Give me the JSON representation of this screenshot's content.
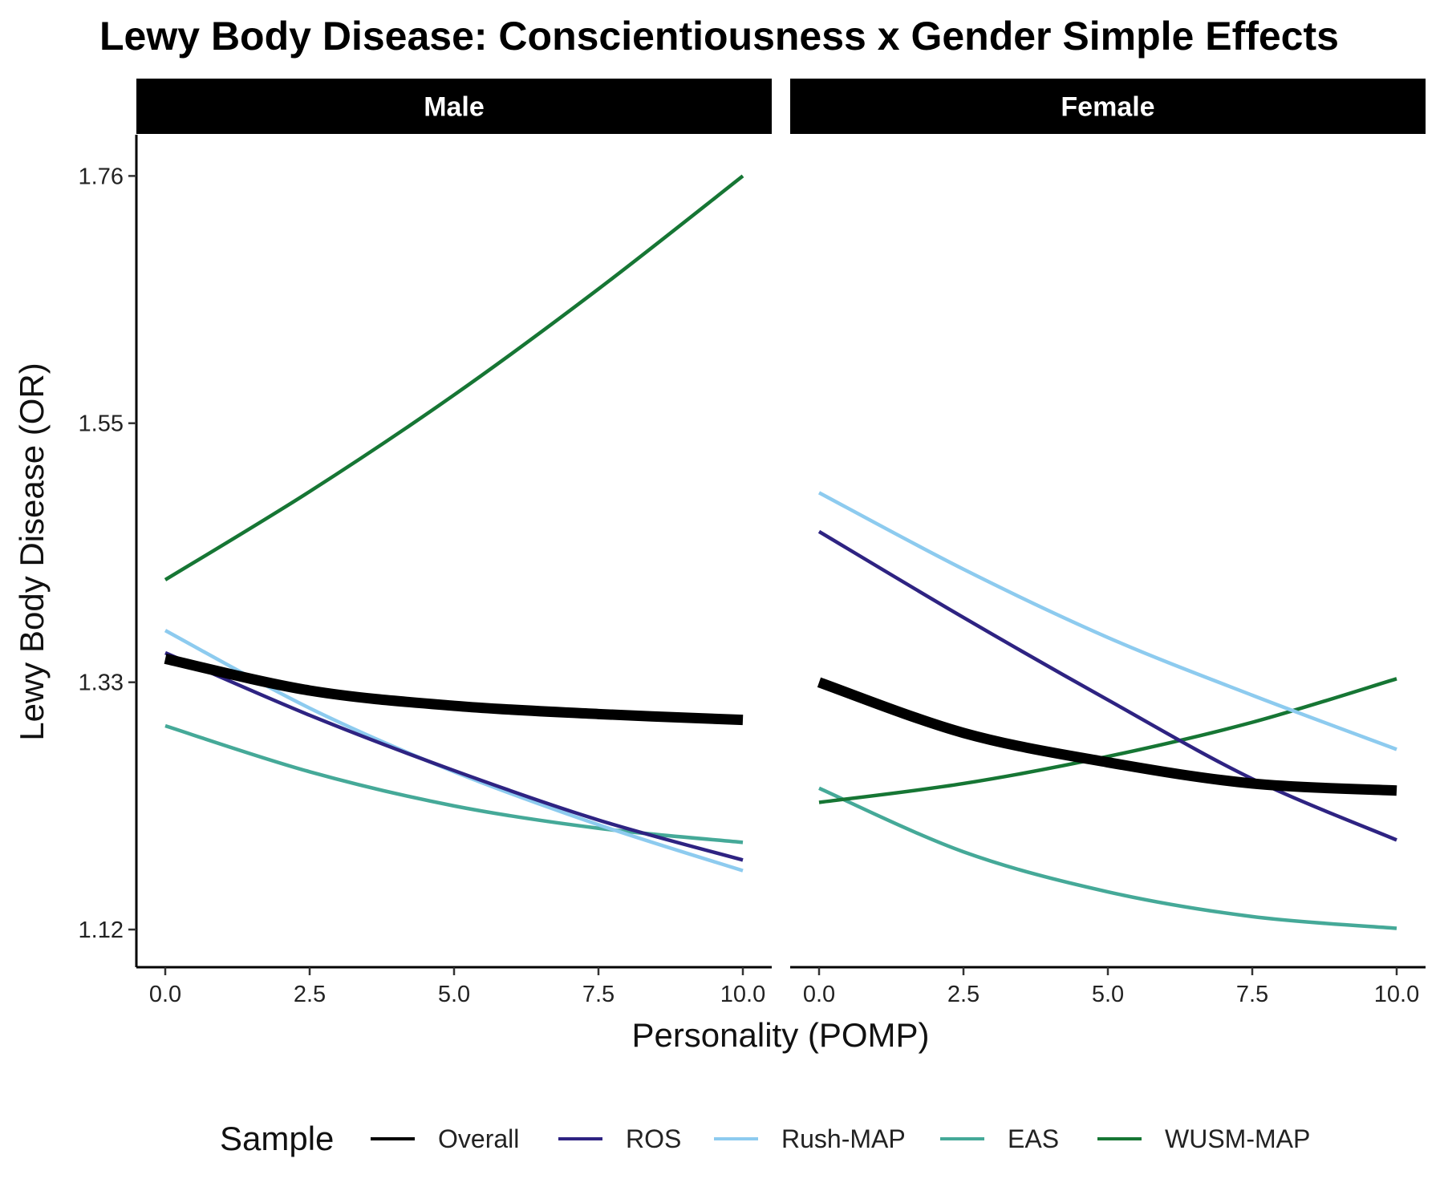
{
  "chart_data": {
    "type": "line",
    "title": "Lewy Body Disease: Conscientiousness x Gender Simple Effects",
    "xlabel": "Personality (POMP)",
    "ylabel": "Lewy Body Disease (OR)",
    "xlim": [
      -0.5,
      10.5
    ],
    "ylim": [
      1.088,
      1.795
    ],
    "x_ticks": [
      0.0,
      2.5,
      5.0,
      7.5,
      10.0
    ],
    "x_tick_labels": [
      "0.0",
      "2.5",
      "5.0",
      "7.5",
      "10.0"
    ],
    "y_ticks": [
      1.12,
      1.33,
      1.55,
      1.76
    ],
    "y_tick_labels": [
      "1.12",
      "1.33",
      "1.55",
      "1.76"
    ],
    "grid": false,
    "legend": {
      "title": "Sample",
      "position": "bottom",
      "entries": [
        "Overall",
        "ROS",
        "Rush-MAP",
        "EAS",
        "WUSM-MAP"
      ]
    },
    "colors": {
      "Overall": "#000000",
      "ROS": "#2e2382",
      "Rush-MAP": "#8dcbef",
      "EAS": "#45a998",
      "WUSM-MAP": "#167634"
    },
    "x": [
      0.0,
      2.5,
      5.0,
      7.5,
      10.0
    ],
    "panels": [
      {
        "label": "Male",
        "series": [
          {
            "name": "Overall",
            "values": [
              1.35,
              1.323,
              1.31,
              1.303,
              1.298
            ]
          },
          {
            "name": "ROS",
            "values": [
              1.355,
              1.302,
              1.255,
              1.213,
              1.179
            ]
          },
          {
            "name": "Rush-MAP",
            "values": [
              1.374,
              1.308,
              1.254,
              1.209,
              1.17
            ]
          },
          {
            "name": "EAS",
            "values": [
              1.293,
              1.254,
              1.225,
              1.206,
              1.194
            ]
          },
          {
            "name": "WUSM-MAP",
            "values": [
              1.417,
              1.492,
              1.574,
              1.664,
              1.76
            ]
          }
        ]
      },
      {
        "label": "Female",
        "series": [
          {
            "name": "Overall",
            "values": [
              1.33,
              1.287,
              1.262,
              1.244,
              1.238
            ]
          },
          {
            "name": "ROS",
            "values": [
              1.458,
              1.385,
              1.315,
              1.248,
              1.196
            ]
          },
          {
            "name": "Rush-MAP",
            "values": [
              1.491,
              1.426,
              1.368,
              1.319,
              1.273
            ]
          },
          {
            "name": "EAS",
            "values": [
              1.24,
              1.186,
              1.152,
              1.131,
              1.121
            ]
          },
          {
            "name": "WUSM-MAP",
            "values": [
              1.228,
              1.244,
              1.267,
              1.296,
              1.333
            ]
          }
        ]
      }
    ]
  }
}
